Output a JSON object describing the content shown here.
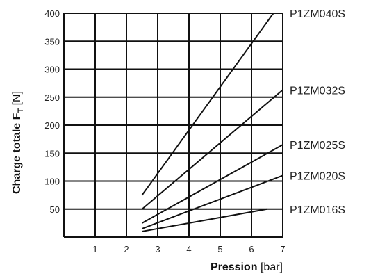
{
  "chart_data": {
    "type": "line",
    "xlim": [
      0,
      7
    ],
    "ylim": [
      0,
      400
    ],
    "grid": true,
    "x_ticks": [
      1,
      2,
      3,
      4,
      5,
      6,
      7
    ],
    "y_ticks": [
      50,
      100,
      150,
      200,
      250,
      300,
      350,
      400
    ],
    "xlabel_bold": "Pression",
    "xlabel_unit": " [bar]",
    "ylabel_bold": "Charge totale F",
    "ylabel_sub": "T",
    "ylabel_unit": " [N]",
    "series": [
      {
        "name": "P1ZM040S",
        "x": [
          2.5,
          6.7
        ],
        "y": [
          75,
          400
        ]
      },
      {
        "name": "P1ZM032S",
        "x": [
          2.5,
          7.0
        ],
        "y": [
          50,
          263
        ]
      },
      {
        "name": "P1ZM025S",
        "x": [
          2.5,
          7.0
        ],
        "y": [
          25,
          165
        ]
      },
      {
        "name": "P1ZM020S",
        "x": [
          2.5,
          7.0
        ],
        "y": [
          15,
          110
        ]
      },
      {
        "name": "P1ZM016S",
        "x": [
          2.5,
          6.5
        ],
        "y": [
          10,
          50
        ]
      }
    ]
  }
}
